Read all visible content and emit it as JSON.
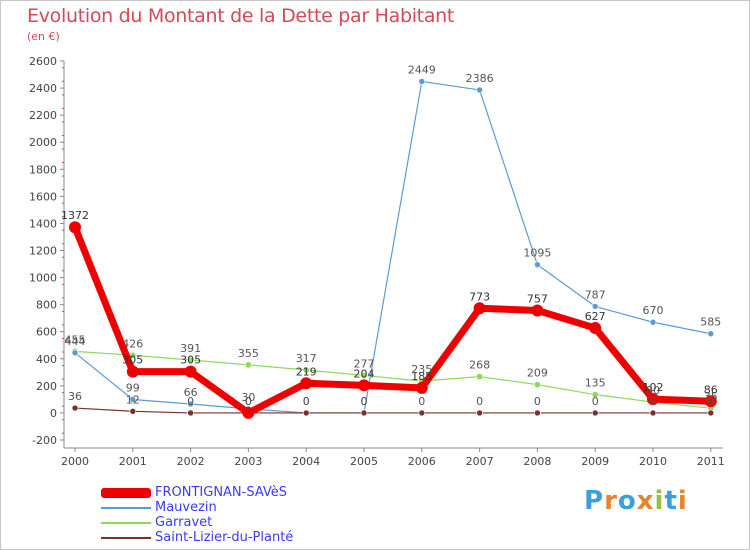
{
  "title": "Evolution du Montant de la Dette par Habitant",
  "subtitle": "(en €)",
  "logo_text": "Proxiti",
  "chart_data": {
    "type": "line",
    "categories": [
      "2000",
      "2001",
      "2002",
      "2003",
      "2004",
      "2005",
      "2006",
      "2007",
      "2008",
      "2009",
      "2010",
      "2011"
    ],
    "ylim": [
      -200,
      2600
    ],
    "yticks": [
      -200,
      0,
      200,
      400,
      600,
      800,
      1000,
      1200,
      1400,
      1600,
      1800,
      2000,
      2200,
      2400,
      2600
    ],
    "grid": false,
    "legend": "bottom-left",
    "series": [
      {
        "name": "FRONTIGNAN-SAVèS",
        "color": "#ee0000",
        "values": [
          1372,
          305,
          305,
          0,
          219,
          204,
          185,
          773,
          757,
          627,
          102,
          86
        ],
        "labels": [
          "1372",
          "305",
          "305",
          "0",
          "219",
          "204",
          "185",
          "773",
          "757",
          "627",
          "102",
          "86"
        ]
      },
      {
        "name": "Mauvezin",
        "color": "#5b9bd5",
        "values": [
          444,
          99,
          66,
          30,
          0,
          0,
          2449,
          2386,
          1095,
          787,
          670,
          585
        ],
        "labels": [
          "444",
          "99",
          "66",
          "30",
          "0",
          "0",
          "2449",
          "2386",
          "1095",
          "787",
          "670",
          "585"
        ]
      },
      {
        "name": "Garravet",
        "color": "#8fd85c",
        "values": [
          455,
          426,
          391,
          355,
          317,
          277,
          235,
          268,
          209,
          135,
          80,
          35
        ],
        "labels": [
          "455",
          "426",
          "391",
          "355",
          "317",
          "277",
          "235",
          "268",
          "209",
          "135",
          "80",
          "35"
        ]
      },
      {
        "name": "Saint-Lizier-du-Planté",
        "color": "#7a2f2f",
        "values": [
          36,
          12,
          0,
          0,
          0,
          0,
          0,
          0,
          0,
          0,
          0,
          0
        ],
        "labels": [
          "36",
          "12",
          "0",
          "0",
          "0",
          "0",
          "0",
          "0",
          "0",
          "0",
          "0",
          "0"
        ]
      }
    ]
  }
}
